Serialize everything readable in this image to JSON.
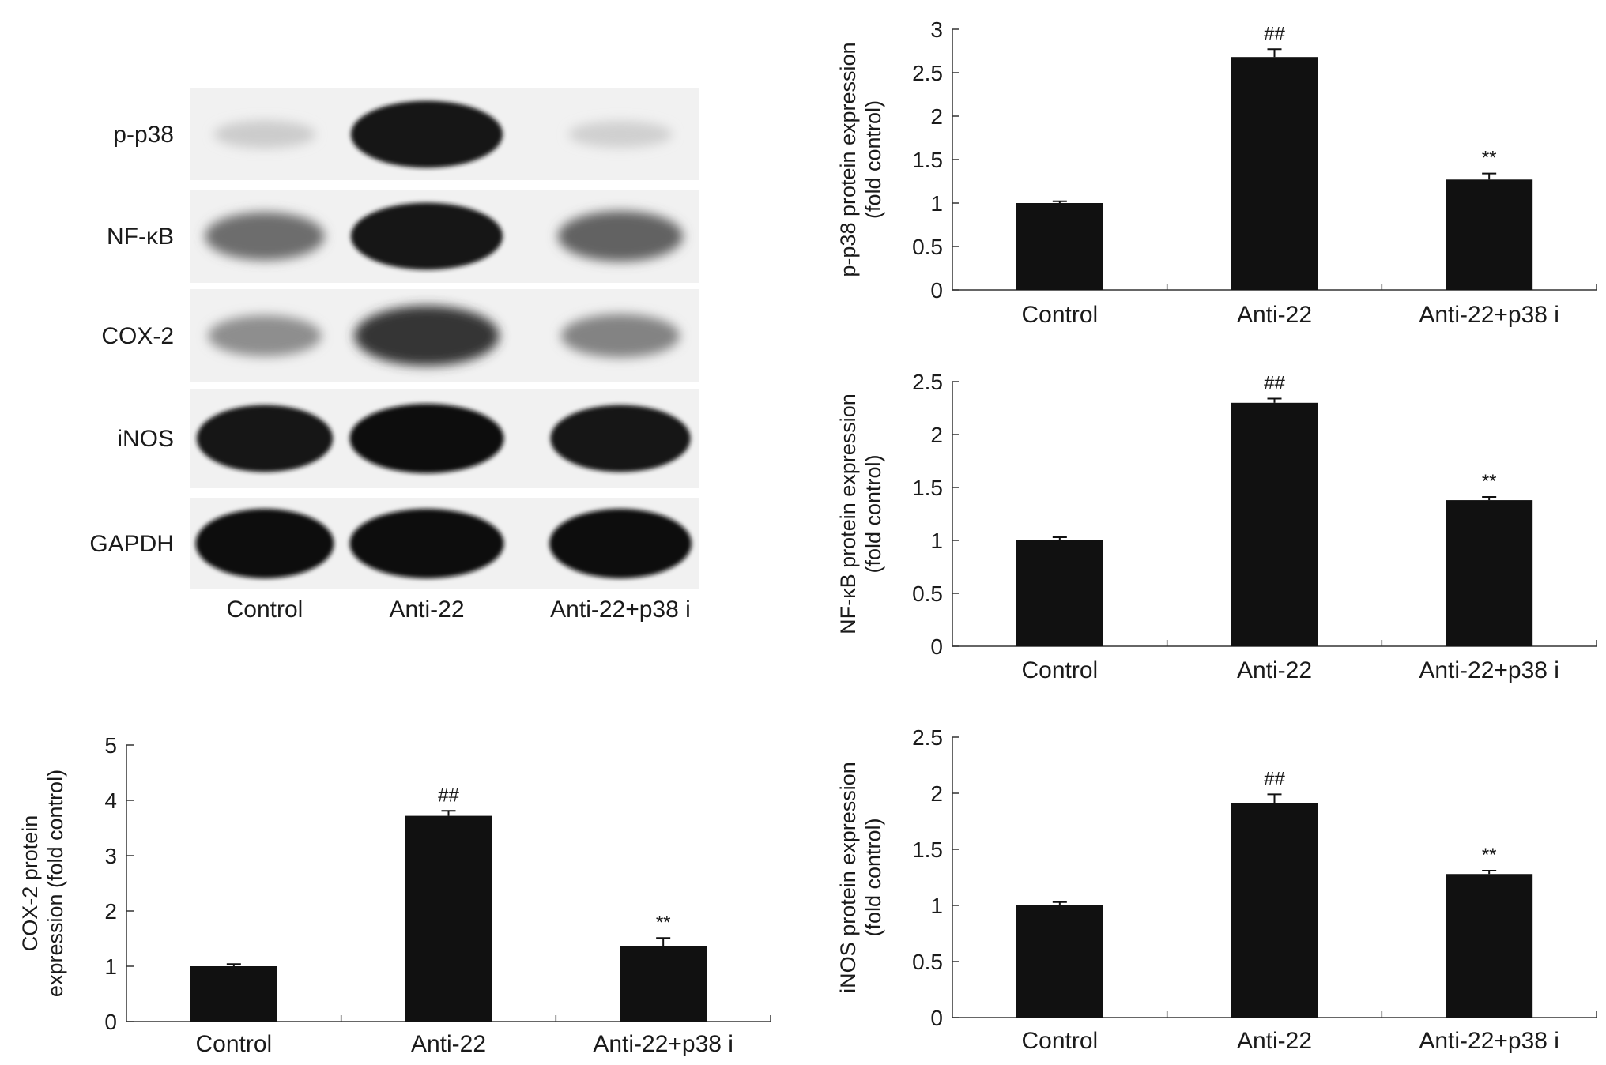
{
  "blot": {
    "rows": [
      {
        "label": "p-p38",
        "intensity": [
          0.12,
          0.95,
          0.1
        ]
      },
      {
        "label": "NF-κB",
        "intensity": [
          0.55,
          0.95,
          0.6
        ]
      },
      {
        "label": "COX-2",
        "intensity": [
          0.4,
          0.8,
          0.45
        ]
      },
      {
        "label": "iNOS",
        "intensity": [
          0.95,
          1.0,
          0.95
        ]
      },
      {
        "label": "GAPDH",
        "intensity": [
          1.0,
          1.0,
          1.0
        ]
      }
    ],
    "lanes": [
      "Control",
      "Anti-22",
      "Anti-22+p38 i"
    ]
  },
  "chart_data": [
    {
      "id": "p-p38",
      "type": "bar",
      "categories": [
        "Control",
        "Anti-22",
        "Anti-22+p38 i"
      ],
      "values": [
        1.0,
        2.68,
        1.27
      ],
      "errors": [
        0.02,
        0.09,
        0.07
      ],
      "significance": [
        "",
        "##",
        "**"
      ],
      "ylabel_lines": [
        "p-p38 protein expression",
        "(fold control)"
      ],
      "ylim": [
        0,
        3
      ],
      "yticks": [
        0,
        0.5,
        1,
        1.5,
        2,
        2.5,
        3
      ],
      "ytick_labels": [
        "0",
        "0.5",
        "1",
        "1.5",
        "2",
        "2.5",
        "3"
      ]
    },
    {
      "id": "nf-kb",
      "type": "bar",
      "categories": [
        "Control",
        "Anti-22",
        "Anti-22+p38 i"
      ],
      "values": [
        1.0,
        2.3,
        1.38
      ],
      "errors": [
        0.03,
        0.04,
        0.03
      ],
      "significance": [
        "",
        "##",
        "**"
      ],
      "ylabel_lines": [
        "NF-κB protein expression",
        "(fold control)"
      ],
      "ylim": [
        0,
        2.5
      ],
      "yticks": [
        0,
        0.5,
        1,
        1.5,
        2,
        2.5
      ],
      "ytick_labels": [
        "0",
        "0.5",
        "1",
        "1.5",
        "2",
        "2.5"
      ]
    },
    {
      "id": "cox-2",
      "type": "bar",
      "categories": [
        "Control",
        "Anti-22",
        "Anti-22+p38 i"
      ],
      "values": [
        1.0,
        3.72,
        1.37
      ],
      "errors": [
        0.04,
        0.09,
        0.14
      ],
      "significance": [
        "",
        "##",
        "**"
      ],
      "ylabel_lines": [
        "COX-2 protein",
        "expression (fold control)"
      ],
      "ylim": [
        0,
        5
      ],
      "yticks": [
        0,
        1,
        2,
        3,
        4,
        5
      ],
      "ytick_labels": [
        "0",
        "1",
        "2",
        "3",
        "4",
        "5"
      ]
    },
    {
      "id": "inos",
      "type": "bar",
      "categories": [
        "Control",
        "Anti-22",
        "Anti-22+p38 i"
      ],
      "values": [
        1.0,
        1.91,
        1.28
      ],
      "errors": [
        0.03,
        0.08,
        0.03
      ],
      "significance": [
        "",
        "##",
        "**"
      ],
      "ylabel_lines": [
        "iNOS protein expression",
        "(fold control)"
      ],
      "ylim": [
        0,
        2.5
      ],
      "yticks": [
        0,
        0.5,
        1,
        1.5,
        2,
        2.5
      ],
      "ytick_labels": [
        "0",
        "0.5",
        "1",
        "1.5",
        "2",
        "2.5"
      ]
    }
  ]
}
